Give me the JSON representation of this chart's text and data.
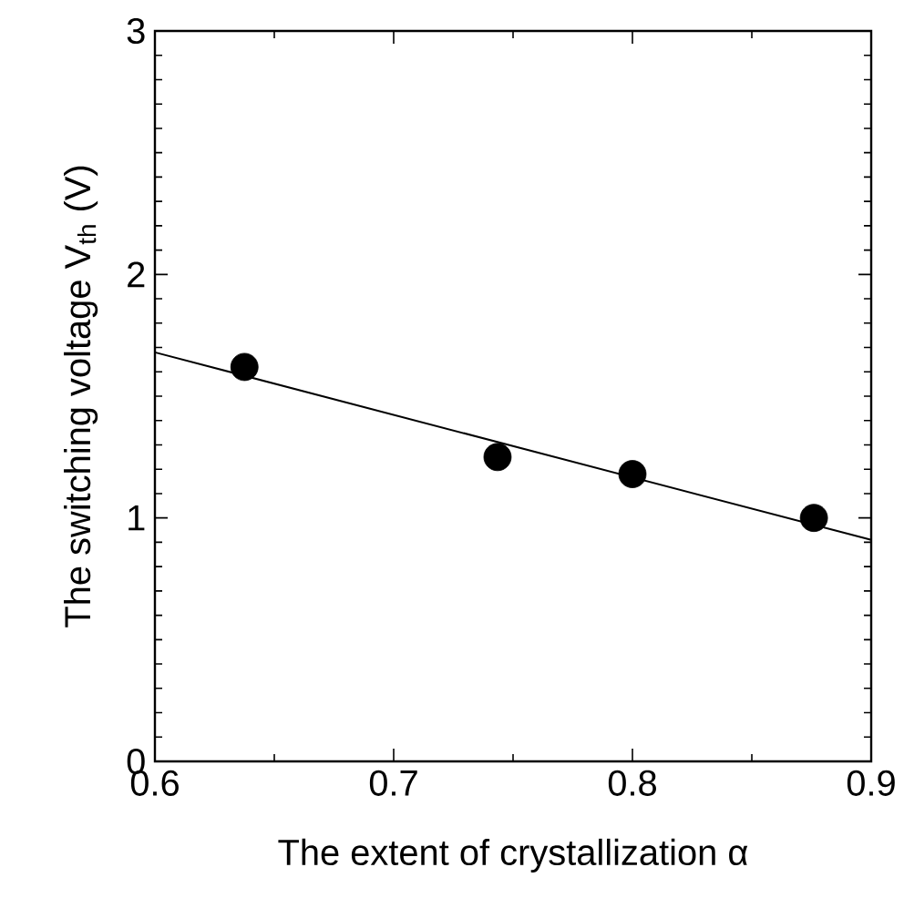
{
  "chart_data": {
    "type": "scatter",
    "xlabel": "The extent of crystallization α",
    "ylabel": "The switching voltage V$_{th}$ (V)",
    "xlim": [
      0.6,
      0.9
    ],
    "ylim": [
      0,
      3
    ],
    "xticks": [
      0.6,
      0.7,
      0.8,
      0.9
    ],
    "yticks": [
      0,
      1,
      2,
      3
    ],
    "grid": false,
    "series": [
      {
        "marker": "circle",
        "color": "#000000",
        "x": [
          0.6375,
          0.7435,
          0.8,
          0.876
        ],
        "values": [
          1.62,
          1.25,
          1.18,
          1.0
        ]
      },
      {
        "type": "line",
        "marker": "none",
        "line_style": "solid",
        "color": "#000000",
        "x": [
          0.6,
          0.9
        ],
        "values": [
          1.68,
          0.91
        ]
      }
    ]
  }
}
